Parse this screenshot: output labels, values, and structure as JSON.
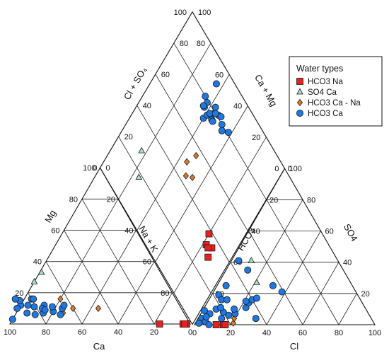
{
  "chart_data": {
    "type": "scatter",
    "title": "",
    "axes": {
      "cation": {
        "ca_label": "Ca",
        "mg_label": "Mg",
        "nak_label": "Na + K"
      },
      "anion": {
        "cl_label": "Cl",
        "so4_label": "SO4",
        "hco3_label": "HCO3"
      },
      "diamond": {
        "clso4_label": "Cl + SO₄",
        "camg_label": "Ca + Mg"
      },
      "ticks": [
        0,
        20,
        40,
        60,
        80,
        100
      ]
    },
    "legend": {
      "title": "Water types",
      "placement": "top-right",
      "entries": [
        {
          "key": "na",
          "label": "HCO3    Na"
        },
        {
          "key": "ca_so4",
          "label": "SO4   Ca"
        },
        {
          "key": "ca_na",
          "label": "HCO3    Ca - Na"
        },
        {
          "key": "ca",
          "label": "HCO3    Ca"
        }
      ]
    },
    "series": [
      {
        "key": "na",
        "marker": "square",
        "color": "#e8211f",
        "cation": [
          [
            4,
            0,
            96
          ],
          [
            17,
            0,
            83
          ],
          [
            2,
            0,
            98
          ],
          [
            3,
            0,
            97
          ]
        ],
        "anion": [
          [
            12,
            0,
            88
          ],
          [
            16,
            0,
            84
          ],
          [
            17,
            0,
            83
          ]
        ],
        "diamond": [
          [
            20,
            38
          ],
          [
            14,
            35
          ],
          [
            18,
            33
          ],
          [
            16,
            33
          ],
          [
            13,
            30
          ]
        ]
      },
      {
        "key": "ca_so4",
        "marker": "triangle",
        "color": "#a9e0c9",
        "cation": [
          [
            73,
            27,
            0
          ],
          [
            66,
            33,
            1
          ]
        ],
        "anion": [
          [
            21,
            27,
            52
          ],
          [
            11,
            41,
            48
          ]
        ],
        "diamond": [
          [
            76,
            18
          ],
          [
            83,
            28
          ]
        ]
      },
      {
        "key": "ca_na",
        "marker": "diamond",
        "color": "#e07a2a",
        "cation": [
          [
            64,
            16,
            20
          ],
          [
            46,
            10,
            44
          ],
          [
            60,
            10,
            30
          ],
          [
            67,
            7,
            26
          ]
        ],
        "anion": [
          [
            21,
            1,
            78
          ],
          [
            20,
            4,
            76
          ]
        ],
        "diamond": [
          [
            55,
            49
          ],
          [
            51,
            44
          ],
          [
            47,
            47
          ],
          [
            52,
            56
          ]
        ]
      },
      {
        "key": "ca",
        "marker": "circle",
        "color": "#1f77e0",
        "cation": [
          [
            88,
            12,
            0
          ],
          [
            87,
            7,
            6
          ],
          [
            84,
            12,
            4
          ],
          [
            81,
            11,
            8
          ],
          [
            78,
            7,
            15
          ],
          [
            75,
            12,
            13
          ],
          [
            80,
            16,
            4
          ],
          [
            77,
            10,
            13
          ],
          [
            76,
            9,
            15
          ],
          [
            72,
            8,
            20
          ],
          [
            69,
            6,
            25
          ],
          [
            66,
            10,
            24
          ],
          [
            64,
            12,
            24
          ],
          [
            87,
            15,
            -2
          ],
          [
            91,
            10,
            -1
          ],
          [
            79,
            16,
            5
          ],
          [
            71,
            11,
            18
          ],
          [
            83,
            6,
            11
          ],
          [
            89,
            16,
            -5
          ],
          [
            97,
            3,
            0
          ]
        ],
        "anion": [
          [
            5,
            25,
            70
          ],
          [
            4,
            19,
            77
          ],
          [
            7,
            16,
            77
          ],
          [
            10,
            16,
            74
          ],
          [
            12,
            8,
            80
          ],
          [
            13,
            4,
            83
          ],
          [
            7,
            10,
            83
          ],
          [
            5,
            7,
            88
          ],
          [
            1,
            9,
            90
          ],
          [
            2,
            4,
            94
          ],
          [
            5,
            2,
            93
          ],
          [
            4,
            5,
            91
          ],
          [
            8,
            0,
            92
          ],
          [
            9,
            11,
            80
          ],
          [
            16,
            6,
            78
          ],
          [
            19,
            7,
            74
          ],
          [
            17,
            10,
            73
          ],
          [
            23,
            11,
            66
          ],
          [
            23,
            14,
            63
          ],
          [
            21,
            15,
            64
          ],
          [
            24,
            16,
            60
          ],
          [
            26,
            17,
            57
          ],
          [
            32,
            4,
            64
          ],
          [
            31,
            25,
            44
          ],
          [
            38,
            21,
            41
          ],
          [
            12,
            35,
            53
          ],
          [
            4,
            41,
            55
          ],
          [
            2,
            1,
            97
          ]
        ],
        "diamond": [
          [
            64,
            90
          ],
          [
            60,
            72
          ],
          [
            63,
            79
          ],
          [
            66,
            80
          ],
          [
            56,
            79
          ],
          [
            55,
            76
          ],
          [
            57,
            82
          ],
          [
            59,
            75
          ],
          [
            63,
            76
          ],
          [
            64,
            76
          ],
          [
            58,
            77
          ],
          [
            54,
            76
          ],
          [
            53,
            81
          ],
          [
            48,
            80
          ],
          [
            51,
            82
          ],
          [
            55,
            80
          ],
          [
            42,
            81
          ],
          [
            46,
            78
          ]
        ]
      }
    ]
  }
}
